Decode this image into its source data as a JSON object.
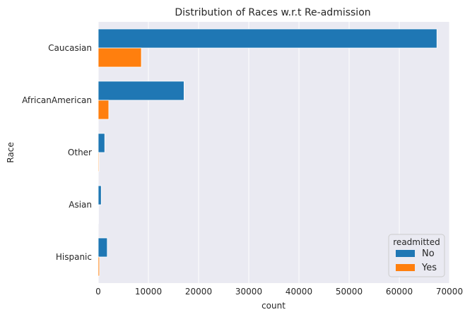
{
  "chart_data": {
    "type": "bar",
    "orientation": "horizontal",
    "title": "Distribution of Races w.r.t Re-admission",
    "xlabel": "count",
    "ylabel": "Race",
    "categories": [
      "Caucasian",
      "AfricanAmerican",
      "Other",
      "Asian",
      "Hispanic"
    ],
    "series": [
      {
        "name": "No",
        "color": "#1f77b4",
        "values": [
          67500,
          17100,
          1300,
          600,
          1800
        ]
      },
      {
        "name": "Yes",
        "color": "#ff7f0e",
        "values": [
          8600,
          2100,
          150,
          60,
          250
        ]
      }
    ],
    "xlim": [
      0,
      70000
    ],
    "xticks": [
      0,
      10000,
      20000,
      30000,
      40000,
      50000,
      60000,
      70000
    ],
    "grid": true,
    "legend": {
      "title": "readmitted",
      "position": "lower-right"
    },
    "background": "#eaeaf2"
  }
}
